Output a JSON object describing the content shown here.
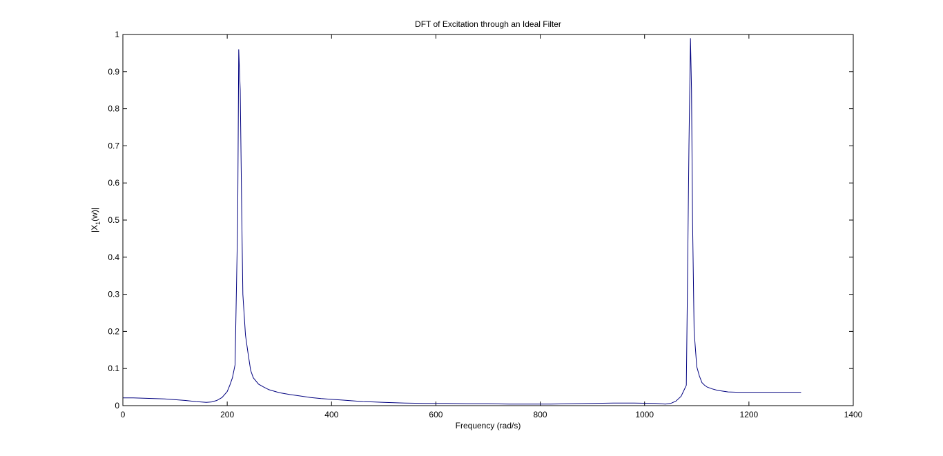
{
  "chart_data": {
    "type": "line",
    "title": "DFT of Excitation through an Ideal Filter",
    "xlabel": "Frequency (rad/s)",
    "ylabel_main": "|X",
    "ylabel_sub": "1",
    "ylabel_tail": "(w)|",
    "xlim": [
      0,
      1400
    ],
    "ylim": [
      0,
      1
    ],
    "xticks": [
      0,
      200,
      400,
      600,
      800,
      1000,
      1200,
      1400
    ],
    "xtick_labels": [
      "0",
      "200",
      "400",
      "600",
      "800",
      "1000",
      "1200",
      "1400"
    ],
    "yticks": [
      0,
      0.1,
      0.2,
      0.3,
      0.4,
      0.5,
      0.6,
      0.7,
      0.8,
      0.9,
      1
    ],
    "ytick_labels": [
      "0",
      "0.1",
      "0.2",
      "0.3",
      "0.4",
      "0.5",
      "0.6",
      "0.7",
      "0.8",
      "0.9",
      "1"
    ],
    "grid": false,
    "colors": {
      "line": "#00007f",
      "axes": "#000000",
      "background": "#ffffff"
    },
    "series": [
      {
        "x": [
          0,
          20,
          40,
          60,
          80,
          100,
          120,
          140,
          160,
          170,
          180,
          190,
          200,
          205,
          210,
          215,
          220,
          222,
          225,
          228,
          230,
          235,
          240,
          245,
          250,
          260,
          270,
          280,
          300,
          320,
          340,
          360,
          380,
          400,
          420,
          440,
          460,
          480,
          500,
          540,
          580,
          620,
          660,
          700,
          740,
          780,
          820,
          860,
          900,
          940,
          980,
          1020,
          1040,
          1050,
          1060,
          1070,
          1075,
          1080,
          1082,
          1085,
          1088,
          1090,
          1092,
          1095,
          1100,
          1105,
          1110,
          1115,
          1120,
          1130,
          1140,
          1150,
          1160,
          1180,
          1200,
          1230,
          1260,
          1300
        ],
        "y": [
          0.021,
          0.021,
          0.02,
          0.019,
          0.018,
          0.016,
          0.014,
          0.011,
          0.009,
          0.01,
          0.014,
          0.022,
          0.038,
          0.055,
          0.075,
          0.11,
          0.5,
          0.96,
          0.85,
          0.5,
          0.3,
          0.19,
          0.14,
          0.095,
          0.075,
          0.058,
          0.05,
          0.043,
          0.035,
          0.03,
          0.026,
          0.022,
          0.019,
          0.017,
          0.015,
          0.013,
          0.011,
          0.01,
          0.009,
          0.007,
          0.006,
          0.006,
          0.005,
          0.005,
          0.004,
          0.004,
          0.004,
          0.005,
          0.006,
          0.007,
          0.007,
          0.006,
          0.004,
          0.006,
          0.012,
          0.025,
          0.04,
          0.055,
          0.3,
          0.7,
          0.99,
          0.85,
          0.5,
          0.2,
          0.105,
          0.08,
          0.062,
          0.055,
          0.05,
          0.045,
          0.041,
          0.039,
          0.037,
          0.036,
          0.036,
          0.036,
          0.036,
          0.036
        ]
      }
    ]
  }
}
